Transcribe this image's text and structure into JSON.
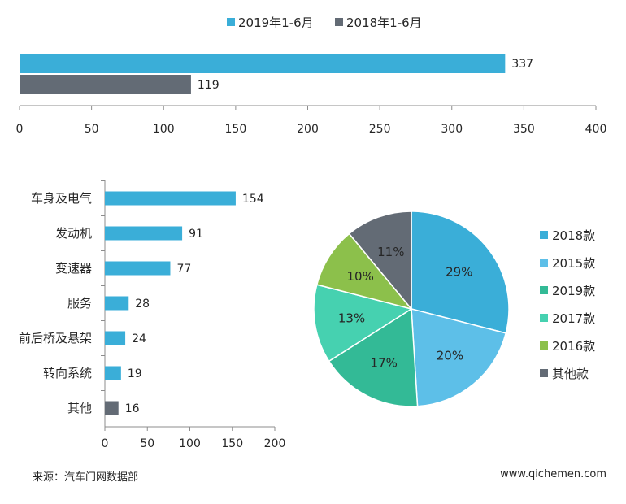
{
  "chart_data": [
    {
      "type": "bar",
      "orientation": "horizontal",
      "categories": [
        ""
      ],
      "series": [
        {
          "name": "2019年1-6月",
          "values": [
            337
          ],
          "color": "#3aaed8"
        },
        {
          "name": "2018年1-6月",
          "values": [
            119
          ],
          "color": "#636b75"
        }
      ],
      "xlim": [
        0,
        400
      ],
      "xticks": [
        0,
        50,
        100,
        150,
        200,
        250,
        300,
        350,
        400
      ],
      "legend": "top",
      "grid": false
    },
    {
      "type": "bar",
      "orientation": "horizontal",
      "categories": [
        "车身及电气",
        "发动机",
        "变速器",
        "服务",
        "前后桥及悬架",
        "转向系统",
        "其他"
      ],
      "values": [
        154,
        91,
        77,
        28,
        24,
        19,
        16
      ],
      "colors": [
        "#3aaed8",
        "#3aaed8",
        "#3aaed8",
        "#3aaed8",
        "#3aaed8",
        "#3aaed8",
        "#636b75"
      ],
      "xlim": [
        0,
        200
      ],
      "xticks": [
        0,
        50,
        100,
        150,
        200
      ],
      "grid": false
    },
    {
      "type": "pie",
      "slices": [
        {
          "label": "2018款",
          "value": 29,
          "value_label": "29%",
          "color": "#3aaed8"
        },
        {
          "label": "2015款",
          "value": 20,
          "value_label": "20%",
          "color": "#5dbfe8"
        },
        {
          "label": "2019款",
          "value": 17,
          "value_label": "17%",
          "color": "#33ba96"
        },
        {
          "label": "2017款",
          "value": 13,
          "value_label": "13%",
          "color": "#46d1b0"
        },
        {
          "label": "2016款",
          "value": 10,
          "value_label": "10%",
          "color": "#8cc04b"
        },
        {
          "label": "其他款",
          "value": 11,
          "value_label": "11%",
          "color": "#636b75"
        }
      ],
      "legend": "right"
    }
  ],
  "footer": {
    "source": "来源：汽车门网数据部",
    "website": "www.qichemen.com"
  }
}
